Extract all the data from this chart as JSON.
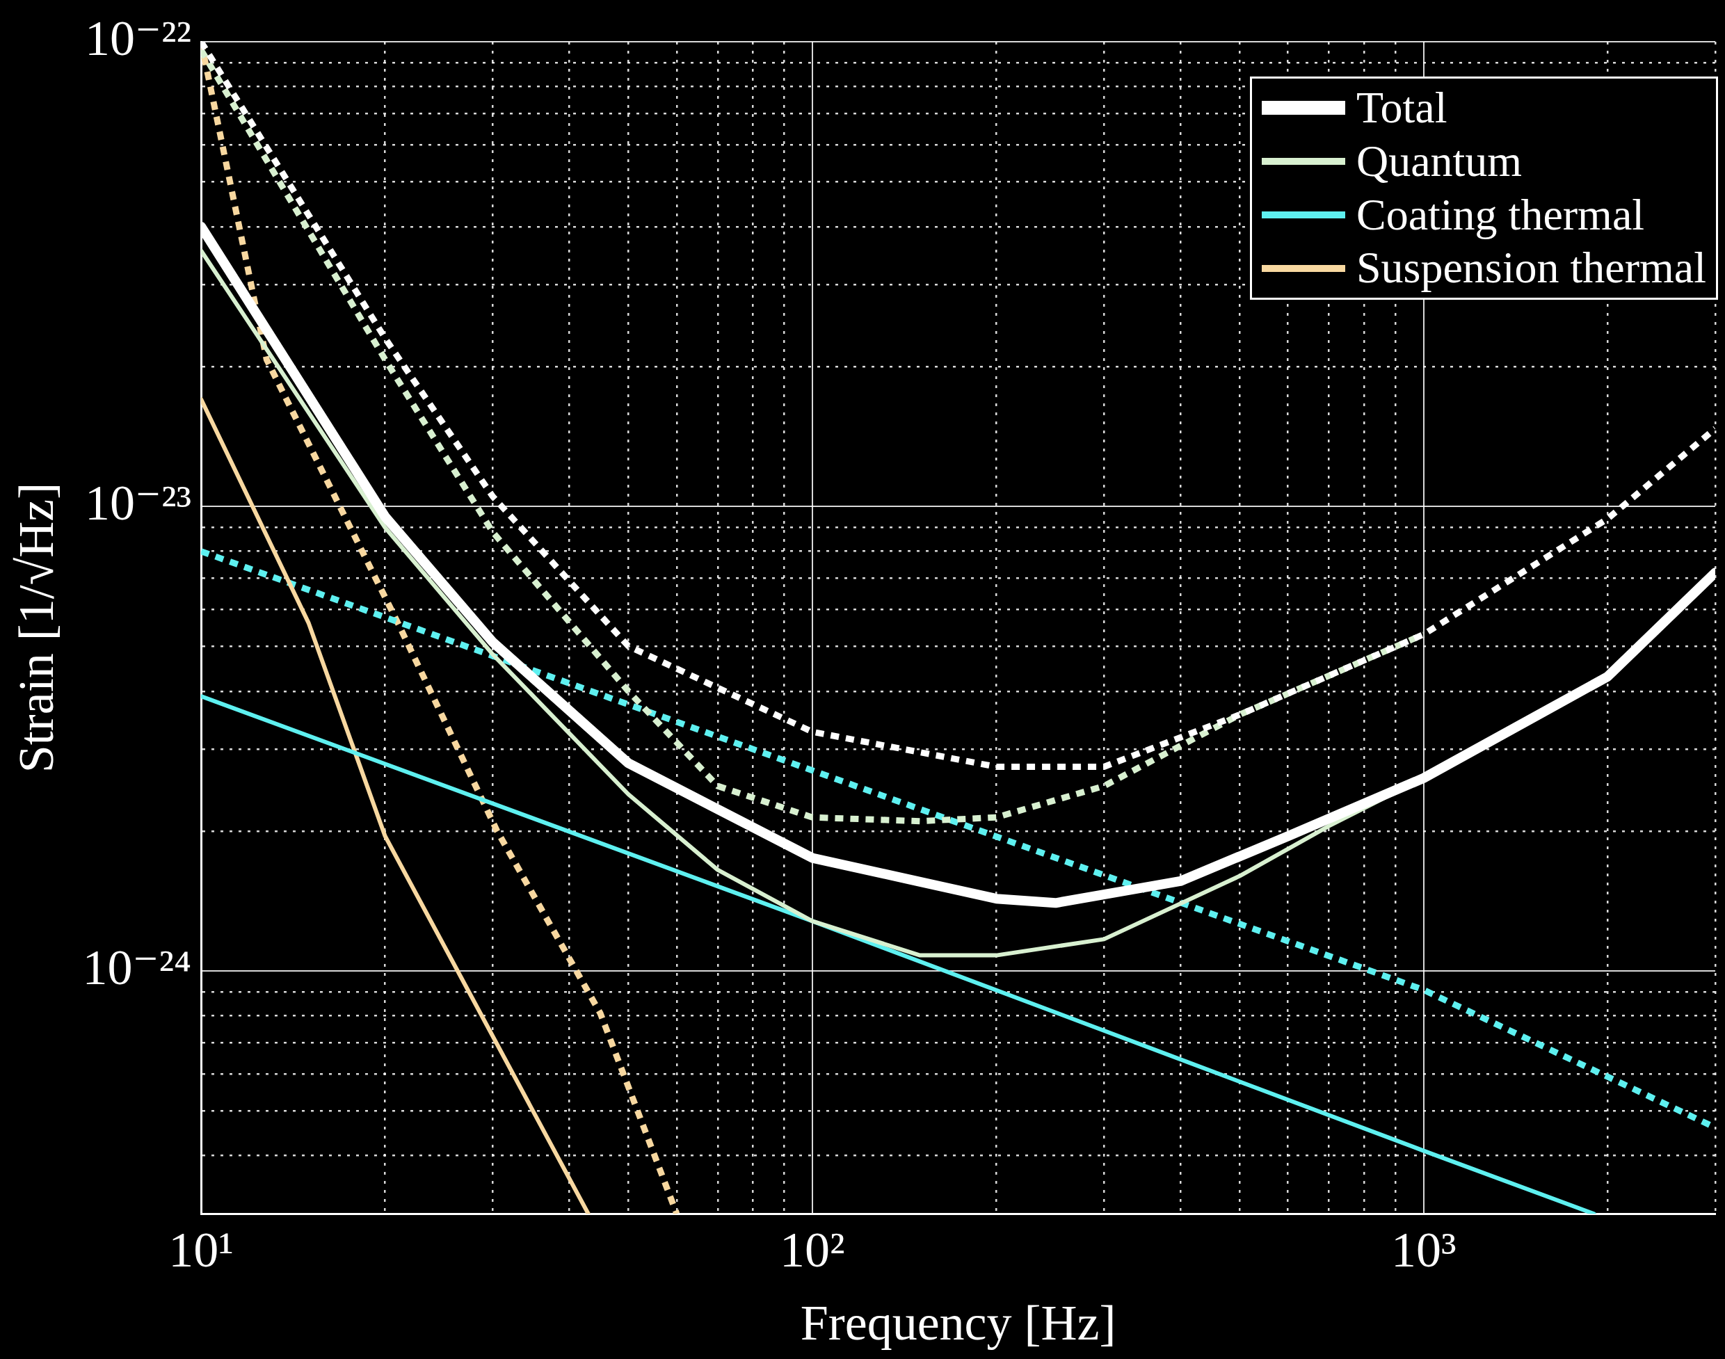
{
  "chart_data": {
    "type": "line",
    "xlabel": "Frequency [Hz]",
    "ylabel": "Strain [1/√Hz]",
    "log": "xy",
    "grid": true,
    "legend": "top right",
    "marker": "none",
    "xlim": [
      10,
      3000
    ],
    "ylim": [
      3e-25,
      1e-22
    ],
    "xticks": [
      {
        "value": 10,
        "label": "10¹"
      },
      {
        "value": 20,
        "label": null
      },
      {
        "value": 30,
        "label": null
      },
      {
        "value": 40,
        "label": null
      },
      {
        "value": 50,
        "label": null
      },
      {
        "value": 60,
        "label": null
      },
      {
        "value": 70,
        "label": null
      },
      {
        "value": 80,
        "label": null
      },
      {
        "value": 90,
        "label": null
      },
      {
        "value": 100,
        "label": "10²"
      },
      {
        "value": 200,
        "label": null
      },
      {
        "value": 300,
        "label": null
      },
      {
        "value": 400,
        "label": null
      },
      {
        "value": 500,
        "label": null
      },
      {
        "value": 600,
        "label": null
      },
      {
        "value": 700,
        "label": null
      },
      {
        "value": 800,
        "label": null
      },
      {
        "value": 900,
        "label": null
      },
      {
        "value": 1000,
        "label": "10³"
      },
      {
        "value": 2000,
        "label": null
      },
      {
        "value": 3000,
        "label": null
      }
    ],
    "yticks": [
      {
        "value": 4e-25,
        "label": null
      },
      {
        "value": 5e-25,
        "label": null
      },
      {
        "value": 6e-25,
        "label": null
      },
      {
        "value": 7e-25,
        "label": null
      },
      {
        "value": 8e-25,
        "label": null
      },
      {
        "value": 9e-25,
        "label": null
      },
      {
        "value": 1e-24,
        "label": "10⁻²⁴"
      },
      {
        "value": 2e-24,
        "label": null
      },
      {
        "value": 3e-24,
        "label": null
      },
      {
        "value": 4e-24,
        "label": null
      },
      {
        "value": 5e-24,
        "label": null
      },
      {
        "value": 6e-24,
        "label": null
      },
      {
        "value": 7e-24,
        "label": null
      },
      {
        "value": 8e-24,
        "label": null
      },
      {
        "value": 9e-24,
        "label": null
      },
      {
        "value": 1e-23,
        "label": "10⁻²³"
      },
      {
        "value": 2e-23,
        "label": null
      },
      {
        "value": 3e-23,
        "label": null
      },
      {
        "value": 4e-23,
        "label": null
      },
      {
        "value": 5e-23,
        "label": null
      },
      {
        "value": 6e-23,
        "label": null
      },
      {
        "value": 7e-23,
        "label": null
      },
      {
        "value": 8e-23,
        "label": null
      },
      {
        "value": 9e-23,
        "label": null
      },
      {
        "value": 1e-22,
        "label": "10⁻²²"
      }
    ],
    "series": [
      {
        "name": "Total",
        "color": "#ffffff",
        "line_style": "solid",
        "x": [
          10,
          20,
          30,
          50,
          100,
          200,
          250,
          400,
          600,
          1000,
          2000,
          3000
        ],
        "values": [
          4e-23,
          9.5e-24,
          5.1e-24,
          2.8e-24,
          1.75e-24,
          1.43e-24,
          1.4e-24,
          1.56e-24,
          1.95e-24,
          2.6e-24,
          4.3e-24,
          7.2e-24
        ]
      },
      {
        "name": "Quantum",
        "color": "#d8f0d0",
        "line_style": "solid",
        "x": [
          10,
          20,
          30,
          50,
          70,
          100,
          150,
          200,
          300,
          500,
          700,
          1000,
          2000,
          3000
        ],
        "values": [
          3.55e-23,
          9e-24,
          4.8e-24,
          2.4e-24,
          1.65e-24,
          1.28e-24,
          1.08e-24,
          1.08e-24,
          1.17e-24,
          1.6e-24,
          2.05e-24,
          2.6e-24,
          4.3e-24,
          7.2e-24
        ]
      },
      {
        "name": "Coating thermal",
        "color": "#5ef0f0",
        "line_style": "solid",
        "x": [
          10,
          100,
          1000,
          1900
        ],
        "values": [
          3.9e-24,
          1.28e-24,
          4.1e-25,
          3e-25
        ]
      },
      {
        "name": "Suspension thermal",
        "color": "#f8d8a0",
        "line_style": "solid",
        "x": [
          10,
          15,
          20,
          43
        ],
        "values": [
          1.7e-23,
          5.6e-24,
          1.95e-24,
          3e-25
        ]
      },
      {
        "color": "#ffffff",
        "line_style": "dotted",
        "x": [
          10,
          20,
          30,
          50,
          100,
          200,
          300,
          500,
          1000,
          2000,
          3000
        ],
        "values": [
          1e-22,
          2.3e-23,
          1.05e-23,
          5e-24,
          3.27e-24,
          2.75e-24,
          2.75e-24,
          3.56e-24,
          5.3e-24,
          9.4e-24,
          1.47e-23
        ]
      },
      {
        "color": "#d8f0d0",
        "line_style": "dotted",
        "x": [
          10,
          20,
          30,
          50,
          70,
          100,
          150,
          200,
          300,
          500,
          1000
        ],
        "values": [
          9.6e-23,
          2.07e-23,
          8.8e-24,
          4e-24,
          2.5e-24,
          2.14e-24,
          2.1e-24,
          2.14e-24,
          2.5e-24,
          3.56e-24,
          5.3e-24
        ]
      },
      {
        "color": "#5ef0f0",
        "line_style": "dotted",
        "x": [
          10,
          100,
          1000,
          3000
        ],
        "values": [
          8e-24,
          2.7e-24,
          9.1e-25,
          4.6e-25
        ]
      },
      {
        "color": "#f8d8a0",
        "line_style": "dotted",
        "x": [
          10,
          12.8,
          21,
          30.5,
          45,
          60
        ],
        "values": [
          1e-22,
          2.07e-23,
          5.6e-24,
          2e-24,
          8.1e-25,
          3e-25
        ]
      }
    ]
  }
}
